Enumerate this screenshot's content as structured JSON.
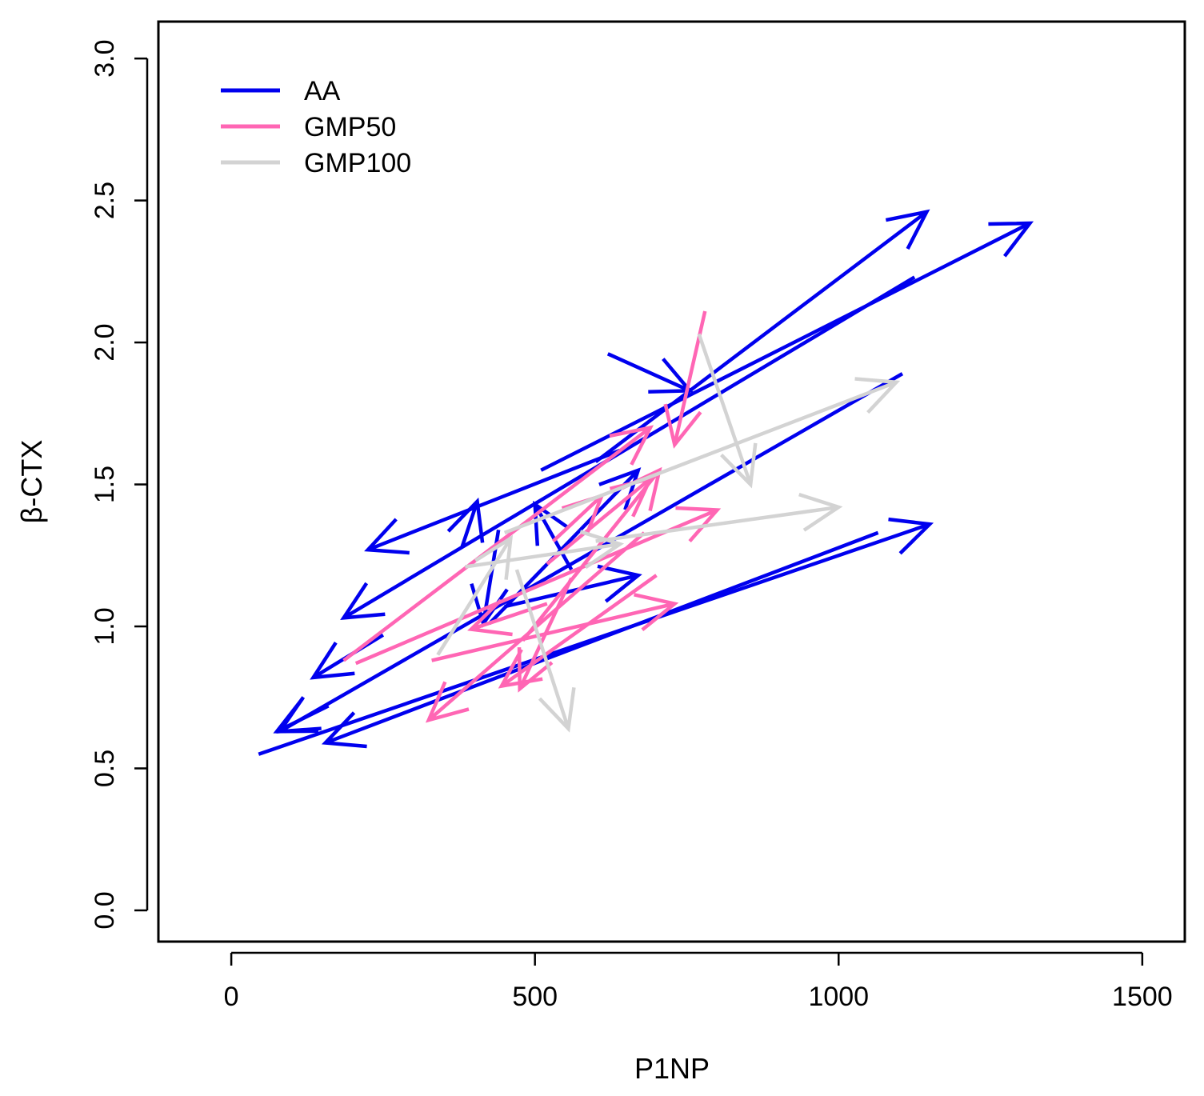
{
  "chart_data": {
    "type": "scatter",
    "subtype": "arrow-plot",
    "title": "",
    "xlabel": "P1NP",
    "ylabel": "β-CTX",
    "xlim": [
      -120,
      1570
    ],
    "ylim": [
      -0.11,
      3.13
    ],
    "x_ticks": [
      0,
      500,
      1000,
      1500
    ],
    "x_tick_labels": [
      "0",
      "500",
      "1000",
      "1500"
    ],
    "y_ticks": [
      0.0,
      0.5,
      1.0,
      1.5,
      2.0,
      2.5,
      3.0
    ],
    "y_tick_labels": [
      "0.0",
      "0.5",
      "1.0",
      "1.5",
      "2.0",
      "2.5",
      "3.0"
    ],
    "grid": false,
    "legend_position": "top-left",
    "series": [
      {
        "name": "AA",
        "color": "#0000ee",
        "arrows": [
          {
            "x0": 600,
            "y0": 1.58,
            "x1": 1145,
            "y1": 2.46
          },
          {
            "x0": 510,
            "y0": 1.55,
            "x1": 1315,
            "y1": 2.42
          },
          {
            "x0": 1125,
            "y0": 2.23,
            "x1": 185,
            "y1": 1.03
          },
          {
            "x0": 640,
            "y0": 1.62,
            "x1": 225,
            "y1": 1.27
          },
          {
            "x0": 620,
            "y0": 1.96,
            "x1": 755,
            "y1": 1.83
          },
          {
            "x0": 1105,
            "y0": 1.89,
            "x1": 80,
            "y1": 0.63
          },
          {
            "x0": 1065,
            "y0": 1.33,
            "x1": 155,
            "y1": 0.59
          },
          {
            "x0": 45,
            "y0": 0.55,
            "x1": 1150,
            "y1": 1.36
          },
          {
            "x0": 450,
            "y0": 1.07,
            "x1": 670,
            "y1": 1.18
          },
          {
            "x0": 560,
            "y0": 1.2,
            "x1": 500,
            "y1": 1.43
          },
          {
            "x0": 440,
            "y0": 1.34,
            "x1": 415,
            "y1": 1.01
          },
          {
            "x0": 425,
            "y0": 1.01,
            "x1": 670,
            "y1": 1.55
          },
          {
            "x0": 380,
            "y0": 1.28,
            "x1": 405,
            "y1": 1.44
          },
          {
            "x0": 250,
            "y0": 0.97,
            "x1": 135,
            "y1": 0.82
          },
          {
            "x0": 160,
            "y0": 0.72,
            "x1": 75,
            "y1": 0.63
          }
        ]
      },
      {
        "name": "GMP50",
        "color": "#ff66b4",
        "arrows": [
          {
            "x0": 185,
            "y0": 0.88,
            "x1": 690,
            "y1": 1.7
          },
          {
            "x0": 780,
            "y0": 2.11,
            "x1": 730,
            "y1": 1.64
          },
          {
            "x0": 205,
            "y0": 0.87,
            "x1": 800,
            "y1": 1.41
          },
          {
            "x0": 330,
            "y0": 0.88,
            "x1": 730,
            "y1": 1.08
          },
          {
            "x0": 480,
            "y0": 0.95,
            "x1": 705,
            "y1": 1.55
          },
          {
            "x0": 520,
            "y0": 1.22,
            "x1": 690,
            "y1": 1.52
          },
          {
            "x0": 530,
            "y0": 1.3,
            "x1": 610,
            "y1": 1.46
          },
          {
            "x0": 680,
            "y0": 1.33,
            "x1": 325,
            "y1": 0.67
          },
          {
            "x0": 700,
            "y0": 1.18,
            "x1": 445,
            "y1": 0.79
          },
          {
            "x0": 520,
            "y0": 1.08,
            "x1": 395,
            "y1": 0.99
          },
          {
            "x0": 560,
            "y0": 1.17,
            "x1": 475,
            "y1": 0.78
          }
        ]
      },
      {
        "name": "GMP100",
        "color": "#d3d3d3",
        "arrows": [
          {
            "x0": 450,
            "y0": 1.33,
            "x1": 1095,
            "y1": 1.86
          },
          {
            "x0": 770,
            "y0": 2.03,
            "x1": 855,
            "y1": 1.5
          },
          {
            "x0": 600,
            "y0": 1.3,
            "x1": 1000,
            "y1": 1.42
          },
          {
            "x0": 470,
            "y0": 1.2,
            "x1": 555,
            "y1": 0.64
          },
          {
            "x0": 340,
            "y0": 0.9,
            "x1": 460,
            "y1": 1.31
          },
          {
            "x0": 385,
            "y0": 1.21,
            "x1": 640,
            "y1": 1.29
          }
        ]
      }
    ]
  }
}
